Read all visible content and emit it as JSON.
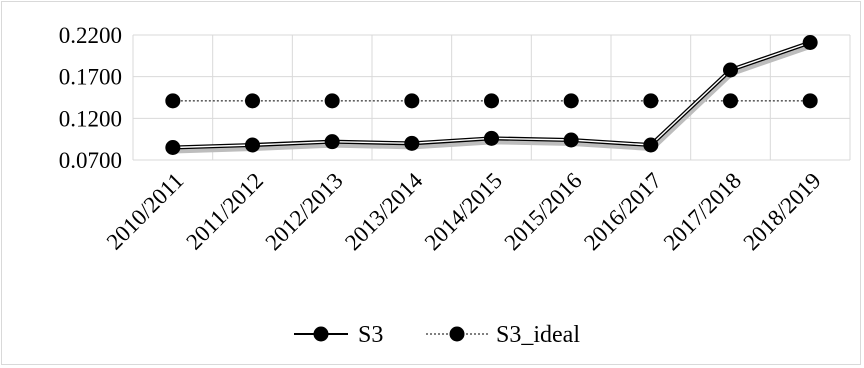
{
  "chart_data": {
    "type": "line",
    "categories": [
      "2010/2011",
      "2011/2012",
      "2012/2013",
      "2013/2014",
      "2014/2015",
      "2015/2016",
      "2016/2017",
      "2017/2018",
      "2018/2019"
    ],
    "series": [
      {
        "name": "S3",
        "values": [
          0.085,
          0.088,
          0.092,
          0.09,
          0.096,
          0.094,
          0.088,
          0.178,
          0.211
        ],
        "style": "solid",
        "color": "#000000"
      },
      {
        "name": "S3_ideal",
        "values": [
          0.141,
          0.141,
          0.141,
          0.141,
          0.141,
          0.141,
          0.141,
          0.141,
          0.141
        ],
        "style": "dotted",
        "color": "#000000"
      }
    ],
    "y_ticks": [
      "0.0700",
      "0.1200",
      "0.1700",
      "0.2200"
    ],
    "y_tick_values": [
      0.07,
      0.12,
      0.17,
      0.22
    ],
    "ylim": [
      0.07,
      0.22
    ],
    "grid": true,
    "legend_position": "bottom"
  }
}
